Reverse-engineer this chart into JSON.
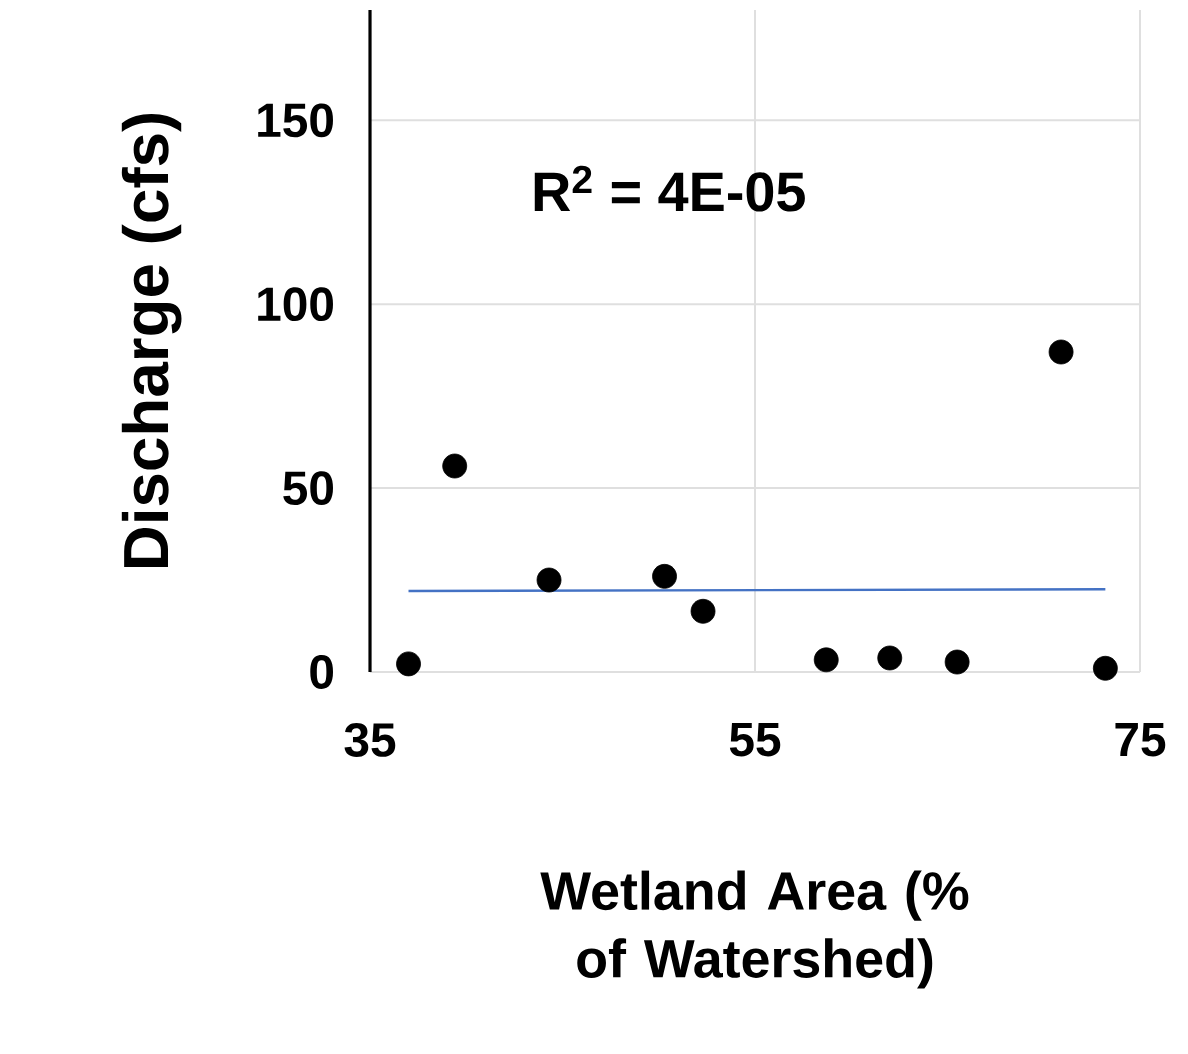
{
  "chart_data": {
    "type": "scatter",
    "xlabel": "Wetland Area (% of Watershed)",
    "ylabel": "Discharge (cfs)",
    "annotations": [
      "R$^{2}$ = 4E-05"
    ],
    "series": [
      {
        "color": "#000000",
        "marker": "circle",
        "x": [
          37,
          39.4,
          44.3,
          50.3,
          52.3,
          58.7,
          62,
          65.5,
          70.9,
          73.2
        ],
        "values": [
          2.2,
          56,
          25,
          26,
          16.5,
          3.3,
          3.8,
          2.7,
          87,
          1
        ]
      },
      {
        "type": "line",
        "color": "#4472c4",
        "marker": "none",
        "x": [
          37,
          73.2
        ],
        "values": [
          22,
          22.5
        ]
      }
    ],
    "xlim": [
      35,
      75
    ],
    "ylim": [
      0,
      180
    ],
    "xticks": [
      35,
      55,
      75
    ],
    "yticks": [
      0,
      50,
      100,
      150
    ],
    "grid": true
  }
}
